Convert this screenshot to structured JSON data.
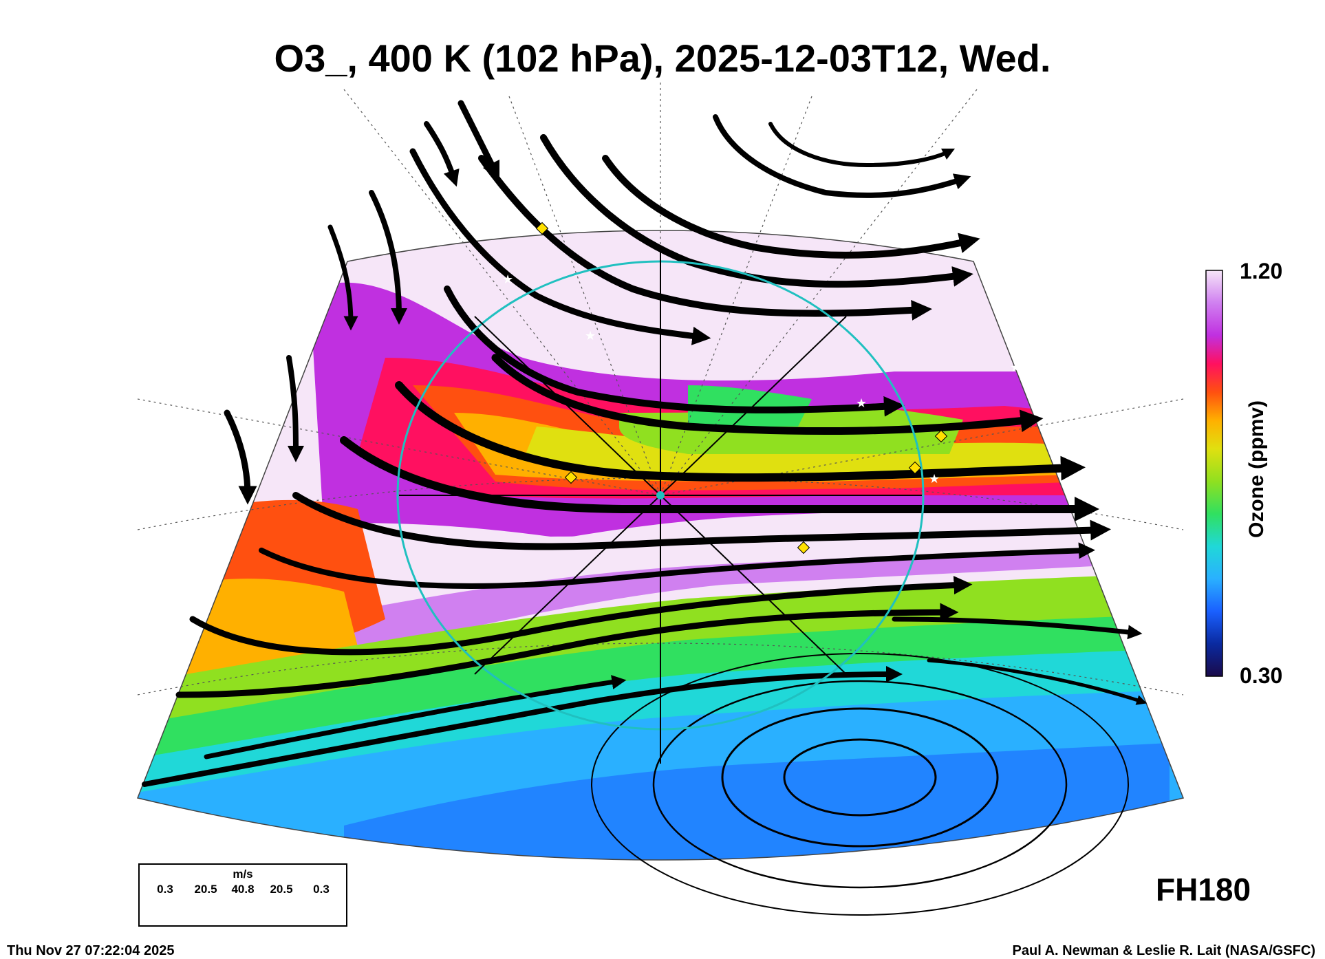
{
  "title": "O3_, 400 K (102 hPa), 2025-12-03T12, Wed.",
  "forecast_hour": "FH180",
  "colorbar": {
    "label": "Ozone (ppmv)",
    "max": "1.20",
    "min": "0.30",
    "colors": [
      "#1a0a4a",
      "#0a2aa0",
      "#1a60ff",
      "#2ab0ff",
      "#20d8d8",
      "#30e060",
      "#90e020",
      "#e0e010",
      "#ffb000",
      "#ff5010",
      "#ff1060",
      "#c030e0",
      "#d080f0",
      "#f6e6f8"
    ]
  },
  "wind_legend": {
    "unit": "m/s",
    "scale": [
      "0.3",
      "20.5",
      "40.8",
      "20.5",
      "0.3"
    ]
  },
  "footer": {
    "timestamp": "Thu Nov 27 07:22:04 2025",
    "credit": "Paul A. Newman & Leslie R. Lait (NASA/GSFC)"
  }
}
